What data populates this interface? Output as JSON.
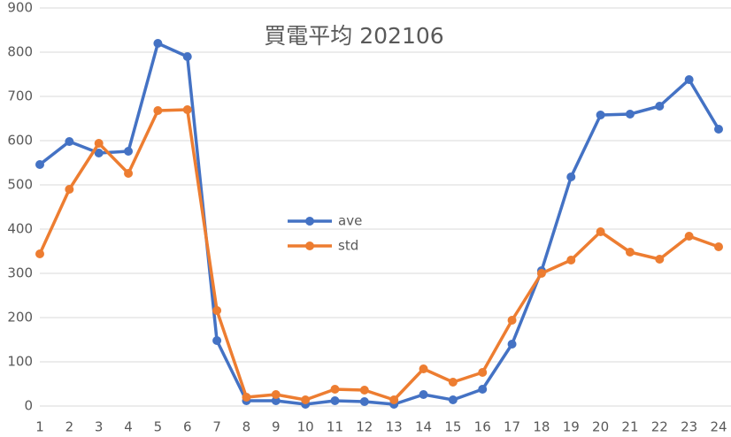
{
  "chart_data": {
    "type": "line",
    "title": "買電平均 202106",
    "categories": [
      "1",
      "2",
      "3",
      "4",
      "5",
      "6",
      "7",
      "8",
      "9",
      "10",
      "11",
      "12",
      "13",
      "14",
      "15",
      "16",
      "17",
      "18",
      "19",
      "20",
      "21",
      "22",
      "23",
      "24"
    ],
    "series": [
      {
        "name": "ave",
        "color": "#4472c4",
        "values": [
          546,
          598,
          572,
          576,
          820,
          790,
          148,
          12,
          12,
          4,
          12,
          10,
          4,
          26,
          14,
          38,
          140,
          306,
          518,
          658,
          660,
          678,
          738,
          626
        ]
      },
      {
        "name": "std",
        "color": "#ed7d31",
        "values": [
          344,
          490,
          594,
          526,
          668,
          670,
          216,
          20,
          26,
          14,
          38,
          36,
          14,
          84,
          54,
          76,
          194,
          300,
          330,
          394,
          348,
          332,
          384,
          360
        ]
      }
    ],
    "ylim": [
      0,
      900
    ],
    "yticks": [
      0,
      100,
      200,
      300,
      400,
      500,
      600,
      700,
      800,
      900
    ],
    "grid": true,
    "legend": "center"
  }
}
